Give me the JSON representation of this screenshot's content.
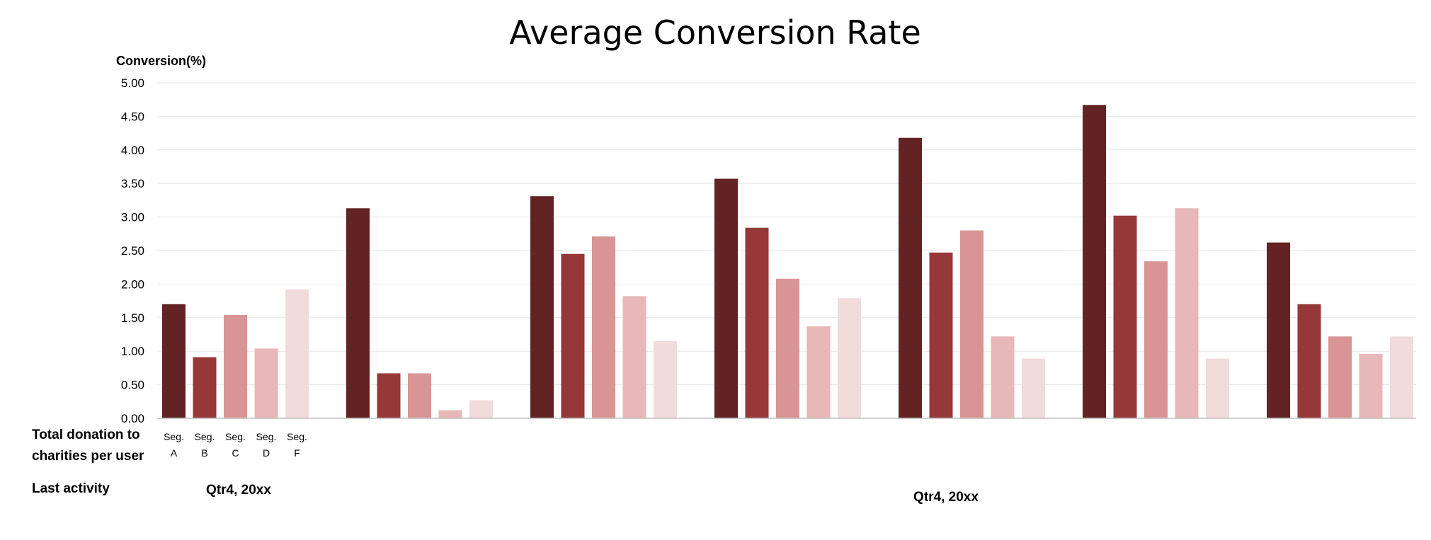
{
  "chart_data": {
    "type": "bar",
    "title": "Average Conversion Rate",
    "ylabel": "Conversion(%)",
    "xlabel": "",
    "ylim": [
      0,
      5
    ],
    "y_ticks": [
      "0.00",
      "0.50",
      "1.00",
      "1.50",
      "2.00",
      "2.50",
      "3.00",
      "3.50",
      "4.00",
      "4.50",
      "5.00"
    ],
    "grid": true,
    "legend": "none",
    "row_labels": {
      "donation_line1": "Total donation to",
      "donation_line2": "charities per user",
      "activity": "Last activity"
    },
    "segment_labels": [
      {
        "top": "Seg.",
        "bottom": "A"
      },
      {
        "top": "Seg.",
        "bottom": "B"
      },
      {
        "top": "Seg.",
        "bottom": "C"
      },
      {
        "top": "Seg.",
        "bottom": "D"
      },
      {
        "top": "Seg.",
        "bottom": "F"
      }
    ],
    "activity_labels": [
      "Qtr4, 20xx",
      "Qtr4, 20xx"
    ],
    "groups": 7,
    "series": [
      {
        "color": "#632324",
        "values": [
          1.7,
          3.13,
          3.31,
          3.57,
          4.18,
          4.67,
          2.62
        ]
      },
      {
        "color": "#963838",
        "values": [
          0.91,
          0.67,
          2.45,
          2.84,
          2.47,
          3.02,
          1.7
        ]
      },
      {
        "color": "#d99596",
        "values": [
          1.54,
          0.67,
          2.71,
          2.08,
          2.8,
          2.34,
          1.22
        ]
      },
      {
        "color": "#e8b7b7",
        "values": [
          1.04,
          0.12,
          1.82,
          1.37,
          1.22,
          3.13,
          0.96
        ]
      },
      {
        "color": "#f2dbdb",
        "values": [
          1.92,
          0.27,
          1.15,
          1.79,
          0.89,
          0.89,
          1.22
        ]
      }
    ]
  }
}
